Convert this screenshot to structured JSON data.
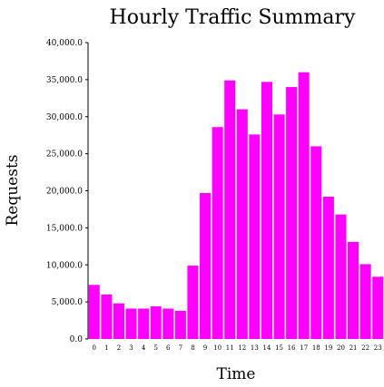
{
  "chart_data": {
    "type": "bar",
    "title": "Hourly Traffic Summary",
    "xlabel": "Time",
    "ylabel": "Requests",
    "categories": [
      "0",
      "1",
      "2",
      "3",
      "4",
      "5",
      "6",
      "7",
      "8",
      "9",
      "10",
      "11",
      "12",
      "13",
      "14",
      "15",
      "16",
      "17",
      "18",
      "19",
      "20",
      "21",
      "22",
      "23"
    ],
    "values": [
      7300,
      6000,
      4800,
      4100,
      4100,
      4400,
      4100,
      3800,
      9900,
      19700,
      28600,
      34900,
      31000,
      27600,
      34700,
      30300,
      34000,
      36000,
      26000,
      19200,
      16800,
      13100,
      10100,
      8400
    ],
    "ylim": [
      0,
      40000
    ],
    "yticks": [
      "0.0",
      "5,000.0",
      "10,000.0",
      "15,000.0",
      "20,000.0",
      "25,000.0",
      "30,000.0",
      "35,000.0",
      "40,000.0"
    ],
    "ytick_values": [
      0,
      5000,
      10000,
      15000,
      20000,
      25000,
      30000,
      35000,
      40000
    ],
    "bar_color": "#ff00ff",
    "grid": false,
    "legend": "none"
  }
}
